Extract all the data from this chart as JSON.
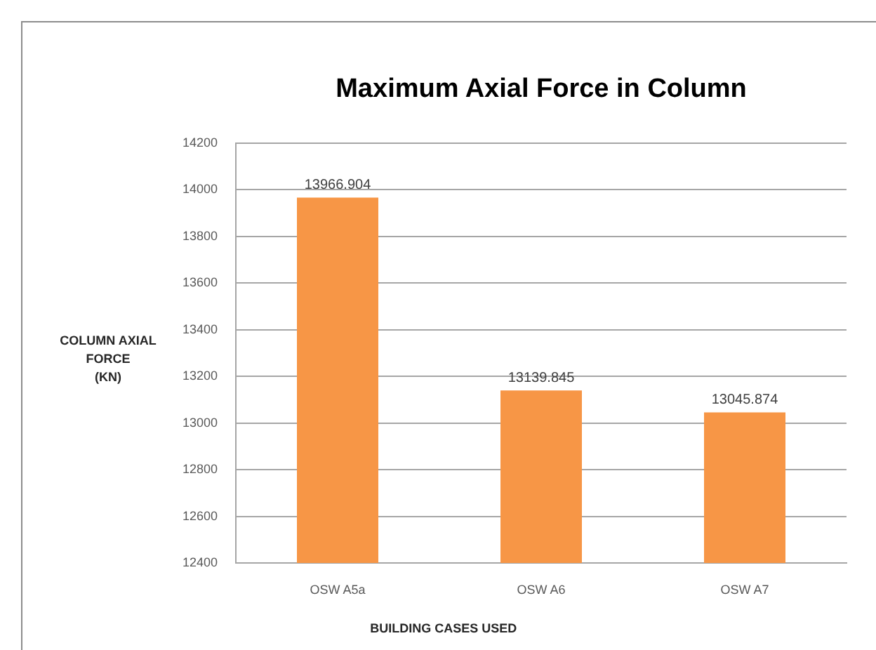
{
  "chart_data": {
    "type": "bar",
    "title": "Maximum Axial Force in Column",
    "xlabel": "BUILDING CASES USED",
    "ylabel": "COLUMN AXIAL\nFORCE\n(KN)",
    "categories": [
      "OSW A5a",
      "OSW A6",
      "OSW A7"
    ],
    "values": [
      13966.904,
      13139.845,
      13045.874
    ],
    "color": "#f79646",
    "ylim": [
      12400,
      14200
    ],
    "yticks": [
      12400,
      12600,
      12800,
      13000,
      13200,
      13400,
      13600,
      13800,
      14000,
      14200
    ],
    "grid": "y",
    "data_labels": true,
    "legend": false
  }
}
